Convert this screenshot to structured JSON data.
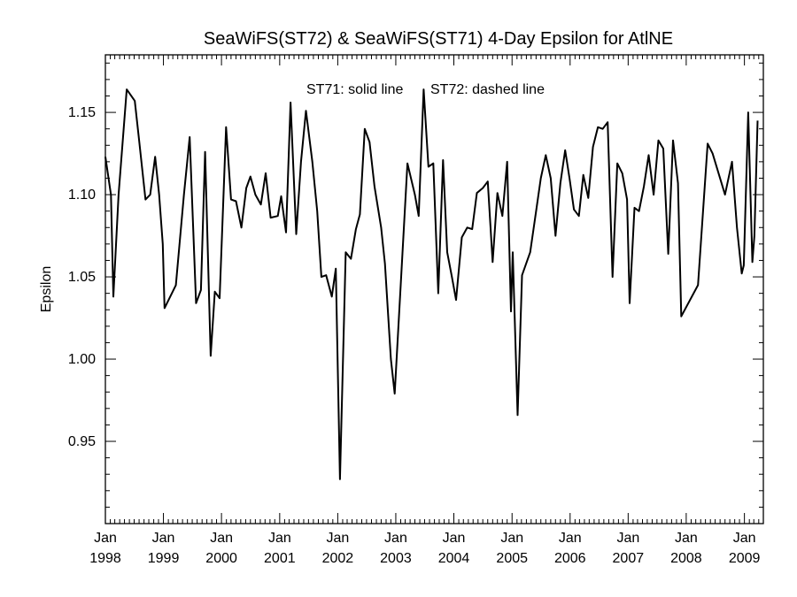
{
  "chart_data": {
    "type": "line",
    "title": "SeaWiFS(ST72) & SeaWiFS(ST71) 4-Day Epsilon for AtlNE",
    "xlabel": "",
    "ylabel": "Epsilon",
    "annotations": [
      "ST71: solid line",
      "ST72: dashed line"
    ],
    "xlim": [
      "1998-01-01",
      "2009-04-30"
    ],
    "ylim": [
      0.9,
      1.185
    ],
    "x_tick_labels": [
      {
        "month": "Jan",
        "year": "1998",
        "date": "1998-01-01"
      },
      {
        "month": "Jan",
        "year": "1999",
        "date": "1999-01-01"
      },
      {
        "month": "Jan",
        "year": "2000",
        "date": "2000-01-01"
      },
      {
        "month": "Jan",
        "year": "2001",
        "date": "2001-01-01"
      },
      {
        "month": "Jan",
        "year": "2002",
        "date": "2002-01-01"
      },
      {
        "month": "Jan",
        "year": "2003",
        "date": "2003-01-01"
      },
      {
        "month": "Jan",
        "year": "2004",
        "date": "2004-01-01"
      },
      {
        "month": "Jan",
        "year": "2005",
        "date": "2005-01-01"
      },
      {
        "month": "Jan",
        "year": "2006",
        "date": "2006-01-01"
      },
      {
        "month": "Jan",
        "year": "2007",
        "date": "2007-01-01"
      },
      {
        "month": "Jan",
        "year": "2008",
        "date": "2008-01-01"
      },
      {
        "month": "Jan",
        "year": "2009",
        "date": "2009-01-01"
      }
    ],
    "y_ticks": [
      "0.95",
      "1.00",
      "1.05",
      "1.10",
      "1.15"
    ],
    "grid": false,
    "series": [
      {
        "style": "solid",
        "color": "#000000",
        "points": [
          [
            "1998-01-01",
            1.123
          ],
          [
            "1998-02-05",
            1.1
          ],
          [
            "1998-02-20",
            1.038
          ],
          [
            "1998-03-25",
            1.1
          ],
          [
            "1998-05-15",
            1.164
          ],
          [
            "1998-07-05",
            1.157
          ],
          [
            "1998-08-01",
            1.133
          ],
          [
            "1998-09-10",
            1.097
          ],
          [
            "1998-10-10",
            1.1
          ],
          [
            "1998-11-10",
            1.123
          ],
          [
            "1998-12-05",
            1.1
          ],
          [
            "1998-12-28",
            1.07
          ],
          [
            "1999-01-08",
            1.031
          ],
          [
            "1999-03-20",
            1.045
          ],
          [
            "1999-05-10",
            1.1
          ],
          [
            "1999-06-15",
            1.135
          ],
          [
            "1999-07-25",
            1.034
          ],
          [
            "1999-08-25",
            1.042
          ],
          [
            "1999-09-20",
            1.126
          ],
          [
            "1999-10-25",
            1.002
          ],
          [
            "1999-11-20",
            1.041
          ],
          [
            "1999-12-20",
            1.037
          ],
          [
            "2000-01-30",
            1.141
          ],
          [
            "2000-03-01",
            1.097
          ],
          [
            "2000-04-01",
            1.096
          ],
          [
            "2000-05-05",
            1.08
          ],
          [
            "2000-06-05",
            1.104
          ],
          [
            "2000-07-01",
            1.111
          ],
          [
            "2000-08-01",
            1.1
          ],
          [
            "2000-09-05",
            1.094
          ],
          [
            "2000-10-05",
            1.113
          ],
          [
            "2000-11-05",
            1.086
          ],
          [
            "2000-12-20",
            1.087
          ],
          [
            "2001-01-10",
            1.099
          ],
          [
            "2001-02-10",
            1.077
          ],
          [
            "2001-03-10",
            1.156
          ],
          [
            "2001-04-15",
            1.076
          ],
          [
            "2001-05-15",
            1.12
          ],
          [
            "2001-06-15",
            1.151
          ],
          [
            "2001-07-25",
            1.12
          ],
          [
            "2001-08-25",
            1.09
          ],
          [
            "2001-09-20",
            1.05
          ],
          [
            "2001-10-20",
            1.051
          ],
          [
            "2001-11-25",
            1.038
          ],
          [
            "2001-12-20",
            1.055
          ],
          [
            "2002-01-15",
            0.927
          ],
          [
            "2002-02-20",
            1.065
          ],
          [
            "2002-03-25",
            1.061
          ],
          [
            "2002-04-25",
            1.079
          ],
          [
            "2002-05-20",
            1.088
          ],
          [
            "2002-06-20",
            1.14
          ],
          [
            "2002-07-20",
            1.132
          ],
          [
            "2002-08-20",
            1.105
          ],
          [
            "2002-10-01",
            1.08
          ],
          [
            "2002-10-25",
            1.058
          ],
          [
            "2002-12-01",
            1.0
          ],
          [
            "2002-12-25",
            0.979
          ],
          [
            "2003-03-15",
            1.119
          ],
          [
            "2003-05-01",
            1.1
          ],
          [
            "2003-05-25",
            1.087
          ],
          [
            "2003-06-25",
            1.164
          ],
          [
            "2003-07-25",
            1.117
          ],
          [
            "2003-08-25",
            1.119
          ],
          [
            "2003-09-25",
            1.04
          ],
          [
            "2003-10-25",
            1.121
          ],
          [
            "2003-11-20",
            1.065
          ],
          [
            "2003-12-20",
            1.05
          ],
          [
            "2004-01-15",
            1.036
          ],
          [
            "2004-02-20",
            1.074
          ],
          [
            "2004-03-25",
            1.08
          ],
          [
            "2004-04-25",
            1.079
          ],
          [
            "2004-05-25",
            1.101
          ],
          [
            "2004-07-01",
            1.104
          ],
          [
            "2004-08-01",
            1.108
          ],
          [
            "2004-09-01",
            1.059
          ],
          [
            "2004-10-01",
            1.101
          ],
          [
            "2004-11-01",
            1.087
          ],
          [
            "2004-12-01",
            1.12
          ],
          [
            "2004-12-25",
            1.029
          ],
          [
            "2005-01-05",
            1.065
          ],
          [
            "2005-02-05",
            0.966
          ],
          [
            "2005-03-05",
            1.051
          ],
          [
            "2005-04-25",
            1.065
          ],
          [
            "2005-06-01",
            1.09
          ],
          [
            "2005-07-01",
            1.11
          ],
          [
            "2005-08-01",
            1.124
          ],
          [
            "2005-09-01",
            1.11
          ],
          [
            "2005-10-01",
            1.075
          ],
          [
            "2005-11-01",
            1.107
          ],
          [
            "2005-12-01",
            1.127
          ],
          [
            "2005-12-28",
            1.11
          ],
          [
            "2006-01-25",
            1.091
          ],
          [
            "2006-02-25",
            1.087
          ],
          [
            "2006-03-25",
            1.112
          ],
          [
            "2006-04-25",
            1.098
          ],
          [
            "2006-05-25",
            1.129
          ],
          [
            "2006-06-25",
            1.141
          ],
          [
            "2006-07-25",
            1.14
          ],
          [
            "2006-08-25",
            1.144
          ],
          [
            "2006-09-25",
            1.05
          ],
          [
            "2006-10-25",
            1.119
          ],
          [
            "2006-11-25",
            1.113
          ],
          [
            "2006-12-25",
            1.097
          ],
          [
            "2007-01-10",
            1.034
          ],
          [
            "2007-02-10",
            1.092
          ],
          [
            "2007-03-10",
            1.09
          ],
          [
            "2007-04-10",
            1.105
          ],
          [
            "2007-05-10",
            1.124
          ],
          [
            "2007-06-10",
            1.1
          ],
          [
            "2007-07-10",
            1.133
          ],
          [
            "2007-08-10",
            1.128
          ],
          [
            "2007-09-10",
            1.064
          ],
          [
            "2007-10-10",
            1.133
          ],
          [
            "2007-11-10",
            1.107
          ],
          [
            "2007-12-01",
            1.026
          ],
          [
            "2008-03-15",
            1.045
          ],
          [
            "2008-05-15",
            1.131
          ],
          [
            "2008-06-15",
            1.125
          ],
          [
            "2008-09-01",
            1.1
          ],
          [
            "2008-10-15",
            1.12
          ],
          [
            "2008-11-15",
            1.08
          ],
          [
            "2008-12-15",
            1.052
          ],
          [
            "2008-12-28",
            1.057
          ],
          [
            "2009-01-25",
            1.15
          ],
          [
            "2009-02-20",
            1.059
          ],
          [
            "2009-03-05",
            1.075
          ],
          [
            "2009-03-25",
            1.145
          ]
        ]
      }
    ]
  }
}
